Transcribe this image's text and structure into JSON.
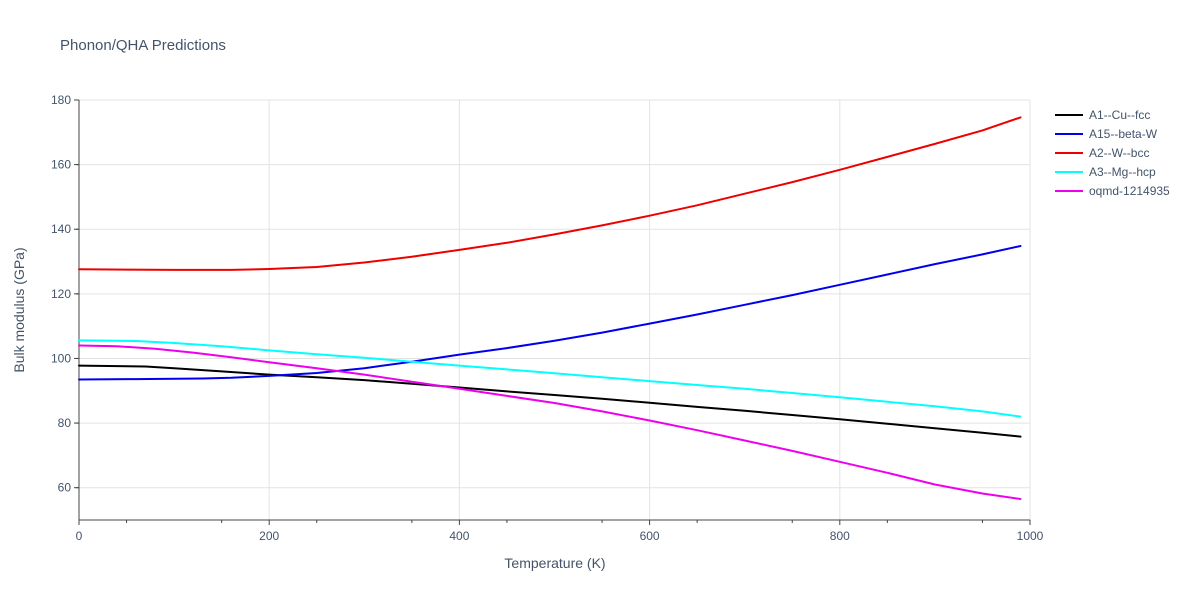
{
  "chart_data": {
    "type": "line",
    "title": "Phonon/QHA Predictions",
    "xlabel": "Temperature (K)",
    "ylabel": "Bulk modulus (GPa)",
    "xlim": [
      0,
      1000
    ],
    "ylim": [
      50,
      180
    ],
    "xticks": [
      0,
      200,
      400,
      600,
      800,
      1000
    ],
    "yticks": [
      60,
      80,
      100,
      120,
      140,
      160,
      180
    ],
    "grid": true,
    "legend_position": "top-right",
    "series": [
      {
        "name": "A1--Cu--fcc",
        "color": "#000000",
        "x": [
          0,
          70,
          100,
          150,
          200,
          250,
          300,
          350,
          400,
          450,
          500,
          550,
          600,
          650,
          700,
          750,
          800,
          850,
          900,
          950,
          990
        ],
        "y": [
          97.8,
          97.5,
          97.0,
          96.0,
          95.0,
          94.2,
          93.3,
          92.2,
          91.0,
          89.8,
          88.7,
          87.5,
          86.3,
          85.0,
          83.8,
          82.5,
          81.2,
          79.8,
          78.4,
          77.0,
          75.8
        ]
      },
      {
        "name": "A15--beta-W",
        "color": "#0000ee",
        "x": [
          0,
          60,
          130,
          160,
          200,
          250,
          300,
          350,
          400,
          450,
          500,
          550,
          600,
          650,
          700,
          750,
          800,
          850,
          900,
          950,
          990
        ],
        "y": [
          93.5,
          93.6,
          93.8,
          94.0,
          94.6,
          95.5,
          97.0,
          99.0,
          101.2,
          103.2,
          105.5,
          108.0,
          110.8,
          113.6,
          116.6,
          119.6,
          122.8,
          126.0,
          129.2,
          132.2,
          134.8
        ]
      },
      {
        "name": "A2--W--bcc",
        "color": "#ee0000",
        "x": [
          0,
          50,
          100,
          160,
          200,
          250,
          300,
          350,
          400,
          450,
          500,
          550,
          600,
          650,
          700,
          750,
          800,
          850,
          900,
          950,
          990
        ],
        "y": [
          127.6,
          127.5,
          127.4,
          127.4,
          127.7,
          128.3,
          129.7,
          131.5,
          133.6,
          135.8,
          138.4,
          141.2,
          144.2,
          147.4,
          151.0,
          154.6,
          158.4,
          162.4,
          166.4,
          170.6,
          174.6
        ]
      },
      {
        "name": "A3--Mg--hcp",
        "color": "#00ffff",
        "x": [
          0,
          60,
          100,
          150,
          200,
          250,
          300,
          350,
          400,
          450,
          500,
          550,
          600,
          650,
          700,
          750,
          800,
          850,
          900,
          950,
          990
        ],
        "y": [
          105.6,
          105.4,
          104.8,
          103.8,
          102.5,
          101.3,
          100.2,
          99.0,
          97.8,
          96.6,
          95.4,
          94.2,
          93.0,
          91.8,
          90.6,
          89.3,
          88.0,
          86.6,
          85.2,
          83.6,
          82.0
        ]
      },
      {
        "name": "oqmd-1214935",
        "color": "#ee00ee",
        "x": [
          0,
          40,
          80,
          120,
          160,
          200,
          250,
          300,
          350,
          400,
          450,
          500,
          550,
          600,
          650,
          700,
          750,
          800,
          850,
          900,
          950,
          990
        ],
        "y": [
          104.0,
          103.8,
          103.0,
          101.8,
          100.4,
          98.8,
          97.0,
          95.0,
          92.8,
          90.6,
          88.4,
          86.2,
          83.6,
          80.8,
          77.8,
          74.6,
          71.4,
          68.0,
          64.6,
          61.0,
          58.2,
          56.5
        ]
      }
    ]
  }
}
